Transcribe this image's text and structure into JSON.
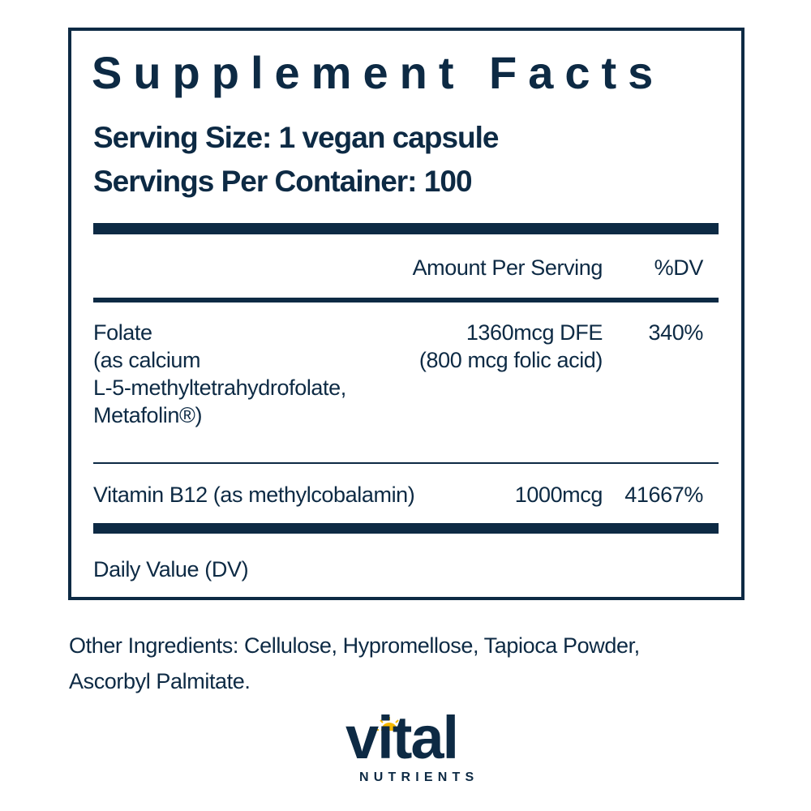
{
  "label": {
    "title": "Supplement Facts",
    "serving_size": "Serving Size: 1 vegan capsule",
    "servings_per_container": "Servings Per Container: 100",
    "columns": {
      "amount": "Amount Per Serving",
      "dv": "%DV"
    },
    "rows": [
      {
        "name_lines": [
          "Folate",
          "(as calcium",
          "L-5-methyltetrahydrofolate,",
          "Metafolin®)"
        ],
        "amount_lines": [
          "1360mcg DFE",
          "(800 mcg folic acid)"
        ],
        "dv": "340%"
      },
      {
        "name_lines": [
          "Vitamin B12 (as methylcobalamin)"
        ],
        "amount_lines": [
          "1000mcg"
        ],
        "dv": "41667%"
      }
    ],
    "footnote": "Daily Value (DV)"
  },
  "other_ingredients": {
    "line1": "Other Ingredients:  Cellulose, Hypromellose, Tapioca Powder,",
    "line2": "Ascorbyl Palmitate."
  },
  "brand": {
    "name": "vital",
    "tagline": "NUTRIENTS",
    "primary_color": "#0d2a44",
    "accent_color": "#f5b800",
    "icon": "sun-icon"
  }
}
